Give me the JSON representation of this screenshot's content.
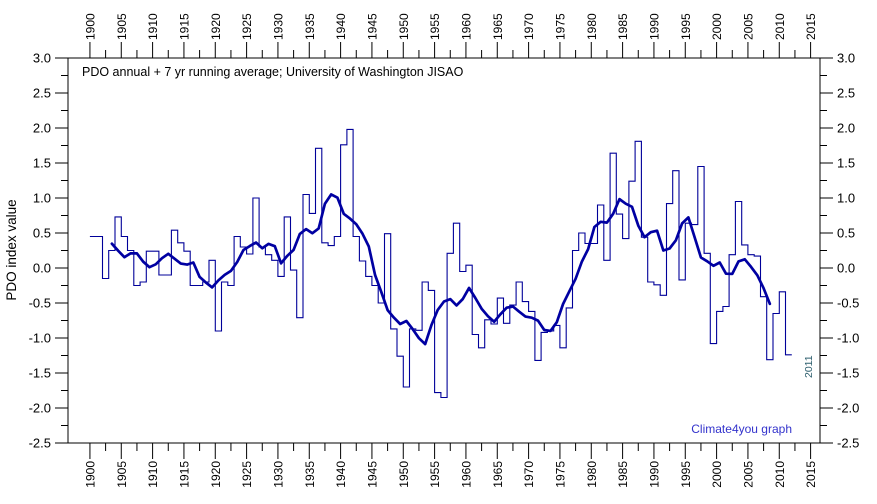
{
  "chart_data": {
    "type": "line",
    "title": "PDO annual + 7 yr running average; University of Washington JISAO",
    "ylabel": "PDO index value",
    "footer_credit": "Climate4you graph",
    "end_year_label": "2011",
    "colors": {
      "annual_step_line": "#000099",
      "running_average_line": "#0000a2",
      "axis": "#000000",
      "tick_label": "#000000",
      "footer_credit": "#3333cc",
      "end_year_label": "#2e5f6e",
      "background": "#ffffff"
    },
    "x_axis": {
      "tick_start": 1900,
      "tick_end": 2015,
      "major_step": 5,
      "minor_step": 2.5,
      "range": [
        1896.5,
        2016.5
      ],
      "label_rotation_deg": -90,
      "mirrored_top_bottom": true
    },
    "y_axis": {
      "min": -2.5,
      "max": 3.0,
      "major_step": 0.5,
      "minor_step": 0.25,
      "mirrored_left_right": true,
      "grid": false
    },
    "series": [
      {
        "name": "PDO annual",
        "style": "step",
        "start_year": 1900,
        "end_year": 2011,
        "values": [
          0.45,
          0.45,
          -0.15,
          0.25,
          0.73,
          0.45,
          0.25,
          -0.25,
          -0.2,
          0.24,
          0.24,
          -0.1,
          -0.1,
          0.54,
          0.36,
          0.24,
          -0.25,
          -0.25,
          -0.2,
          0.11,
          -0.9,
          -0.2,
          -0.25,
          0.45,
          0.3,
          0.2,
          1.0,
          0.3,
          0.19,
          0.11,
          -0.12,
          0.73,
          -0.03,
          -0.71,
          1.05,
          0.78,
          1.71,
          0.36,
          0.32,
          0.45,
          1.76,
          1.98,
          0.45,
          0.1,
          -0.12,
          -0.25,
          -0.5,
          0.49,
          -0.87,
          -1.26,
          -1.7,
          -0.87,
          -0.89,
          -0.2,
          -0.32,
          -1.78,
          -1.85,
          0.21,
          0.64,
          -0.05,
          0.04,
          -0.95,
          -1.14,
          -0.74,
          -0.8,
          -0.43,
          -0.79,
          -0.53,
          -0.2,
          -0.48,
          -0.62,
          -1.32,
          -0.92,
          -0.9,
          -0.82,
          -1.14,
          -0.57,
          0.25,
          0.5,
          0.35,
          0.35,
          0.9,
          0.11,
          1.64,
          0.77,
          0.42,
          1.24,
          1.81,
          0.44,
          -0.2,
          -0.24,
          -0.39,
          0.92,
          1.39,
          -0.17,
          0.64,
          0.62,
          1.45,
          0.21,
          -1.08,
          -0.62,
          -0.55,
          0.19,
          0.95,
          0.33,
          0.19,
          0.17,
          -0.41,
          -1.31,
          -0.65,
          -0.34,
          -1.24
        ]
      },
      {
        "name": "7 yr running average",
        "style": "thick-line",
        "derivation": "centered 7-year mean of annual values, plotted 1903-2008"
      }
    ],
    "legend_position": "none (described in title)"
  }
}
